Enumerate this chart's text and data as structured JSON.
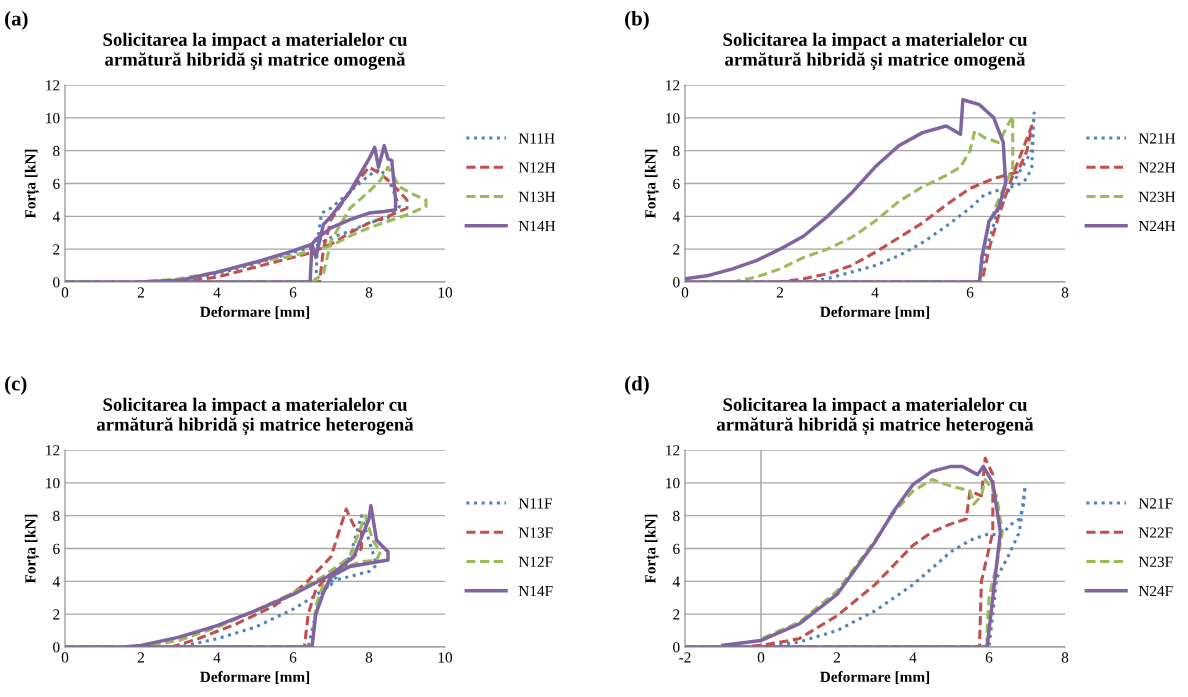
{
  "chart_data": [
    {
      "type": "line",
      "title": "Solicitarea la impact a materialelor cu\narmătură hibridă și matrice omogenă",
      "xlabel": "Deformare [mm]",
      "ylabel": "Forța [kN]",
      "annotations": [
        "(a)"
      ],
      "xlim": [
        0,
        10
      ],
      "xticks": [
        0,
        2,
        4,
        6,
        8,
        10
      ],
      "ylim": [
        0,
        12
      ],
      "yticks": [
        0,
        2,
        4,
        6,
        8,
        10,
        12
      ],
      "grid": "y",
      "legend": "right",
      "series": [
        {
          "name": "N11H",
          "color": "#4f81bd",
          "line_style": "dotted",
          "x": [
            0,
            3,
            6.6,
            6.65,
            6.75,
            7,
            7.5,
            8,
            8.3,
            8.6,
            8.8,
            8.5,
            8,
            7.5,
            7,
            6.6,
            6,
            5,
            4,
            3,
            2
          ],
          "values": [
            0,
            0,
            0,
            2.5,
            4.2,
            4.5,
            5.5,
            6.5,
            6.9,
            5.8,
            4.6,
            3.9,
            3.6,
            3.1,
            2.7,
            2.2,
            1.8,
            1.1,
            0.5,
            0.1,
            0
          ]
        },
        {
          "name": "N12H",
          "color": "#c0504d",
          "line_style": "dashed",
          "x": [
            0,
            6.7,
            6.8,
            7,
            7.5,
            8,
            8.3,
            8.6,
            9,
            9,
            8.5,
            8,
            7.5,
            7,
            6.5,
            6,
            5,
            4,
            3
          ],
          "values": [
            0,
            0,
            2,
            3.8,
            5.5,
            7,
            6.6,
            6,
            5,
            4.5,
            4,
            3.6,
            3,
            2.3,
            1.8,
            1.5,
            0.9,
            0.3,
            0
          ]
        },
        {
          "name": "N13H",
          "color": "#9bbb59",
          "line_style": "dashed",
          "x": [
            0,
            6.5,
            6.8,
            7,
            7.5,
            8,
            8.3,
            8.5,
            8.8,
            9.2,
            9.5,
            9.5,
            9,
            8.5,
            8,
            7.5,
            7,
            6.5,
            6,
            5,
            4,
            3,
            2
          ],
          "values": [
            0,
            0,
            0.5,
            2.5,
            4.5,
            5.5,
            6.2,
            7,
            5.8,
            5.3,
            5,
            4.6,
            4.1,
            3.7,
            3.3,
            2.8,
            2.2,
            1.9,
            1.6,
            1.2,
            0.6,
            0.2,
            0
          ]
        },
        {
          "name": "N14H",
          "color": "#8064a2",
          "line_style": "solid",
          "x": [
            0,
            6.45,
            6.5,
            6.6,
            6.8,
            7,
            7.5,
            8,
            8.15,
            8.25,
            8.4,
            8.5,
            8.6,
            8.7,
            8.7,
            8.4,
            8,
            7.5,
            7,
            6.6,
            6.5,
            6,
            5,
            4,
            3,
            2
          ],
          "values": [
            0,
            0,
            2.3,
            1.5,
            3.5,
            4,
            5.5,
            7.5,
            8.2,
            7,
            8.3,
            7.5,
            7.4,
            5,
            4.4,
            4.3,
            4.2,
            3.8,
            3.3,
            2.6,
            2.3,
            1.9,
            1.2,
            0.6,
            0.1,
            0
          ]
        }
      ]
    },
    {
      "type": "line",
      "title": "Solicitarea la impact a materialelor cu\narmătură hibridă și matrice omogenă",
      "xlabel": "Deformare [mm]",
      "ylabel": "Forța [kN]",
      "annotations": [
        "(b)"
      ],
      "xlim": [
        0,
        8
      ],
      "xticks": [
        0,
        2,
        4,
        6,
        8
      ],
      "ylim": [
        0,
        12
      ],
      "yticks": [
        0,
        2,
        4,
        6,
        8,
        10,
        12
      ],
      "grid": "y",
      "legend": "right",
      "series": [
        {
          "name": "N21H",
          "color": "#4f81bd",
          "line_style": "dotted",
          "x": [
            0,
            6.2,
            6.3,
            6.6,
            7,
            7.3,
            7.35,
            7.3,
            7.2,
            7,
            6.6,
            6.3,
            6,
            5.5,
            5,
            4.5,
            4,
            3.5,
            3,
            2.5
          ],
          "values": [
            0,
            0,
            1.5,
            4.5,
            6.5,
            8,
            10.3,
            7,
            6.3,
            5.9,
            5.6,
            5.3,
            4.5,
            3.4,
            2.4,
            1.6,
            1,
            0.6,
            0.2,
            0
          ]
        },
        {
          "name": "N22H",
          "color": "#c0504d",
          "line_style": "dashed",
          "x": [
            0,
            6.25,
            6.4,
            6.6,
            6.9,
            7.1,
            7.3,
            7.2,
            7,
            6.5,
            6,
            5.5,
            5,
            4.5,
            4,
            3.5,
            3,
            2.5,
            2
          ],
          "values": [
            0,
            0,
            2,
            4,
            6.5,
            8,
            9.5,
            8,
            6.7,
            6.3,
            5.7,
            4.7,
            3.6,
            2.7,
            1.8,
            1,
            0.5,
            0.2,
            0
          ]
        },
        {
          "name": "N23H",
          "color": "#9bbb59",
          "line_style": "dashed",
          "x": [
            0,
            6.2,
            6.25,
            6.4,
            6.6,
            6.9,
            6.9,
            6.6,
            6.3,
            6.1,
            6,
            5.8,
            5.5,
            5,
            4.5,
            4,
            3.5,
            3,
            2.5,
            2,
            1.5,
            1
          ],
          "values": [
            0,
            0,
            1.5,
            3.5,
            5,
            7,
            10.1,
            8.5,
            8.8,
            9.2,
            8,
            7,
            6.5,
            5.8,
            4.9,
            3.7,
            2.7,
            2,
            1.5,
            0.8,
            0.3,
            0
          ]
        },
        {
          "name": "N24H",
          "color": "#8064a2",
          "line_style": "solid",
          "x": [
            0,
            6.2,
            6.25,
            6.4,
            6.6,
            6.75,
            6.7,
            6.5,
            6.2,
            5.85,
            5.8,
            5.5,
            5,
            4.5,
            4,
            3.5,
            3,
            2.5,
            2,
            1.5,
            1,
            0.5,
            0
          ],
          "values": [
            0,
            0,
            1.5,
            3.7,
            4.5,
            6,
            8.5,
            10,
            10.8,
            11.1,
            9,
            9.5,
            9.1,
            8.3,
            7,
            5.4,
            4,
            2.8,
            2,
            1.3,
            0.8,
            0.4,
            0.2
          ]
        }
      ]
    },
    {
      "type": "line",
      "title": "Solicitarea la impact a materialelor cu\narmătură hibridă și matrice heterogenă",
      "xlabel": "Deformare [mm]",
      "ylabel": "Forța [kN]",
      "annotations": [
        "(c)"
      ],
      "xlim": [
        0,
        10
      ],
      "xticks": [
        0,
        2,
        4,
        6,
        8,
        10
      ],
      "ylim": [
        0,
        12
      ],
      "yticks": [
        0,
        2,
        4,
        6,
        8,
        10,
        12
      ],
      "grid": "y",
      "legend": "right",
      "series": [
        {
          "name": "N11F",
          "color": "#4f81bd",
          "line_style": "dotted",
          "x": [
            0,
            6.4,
            6.5,
            6.7,
            7,
            7.5,
            8,
            8.2,
            8,
            7.8,
            7.5,
            7,
            6.5,
            6,
            5,
            4,
            3
          ],
          "values": [
            0,
            0,
            1,
            3,
            4,
            4.3,
            4.6,
            5,
            6.5,
            8,
            5.5,
            3.8,
            3,
            2.3,
            1.2,
            0.5,
            0
          ]
        },
        {
          "name": "N13F",
          "color": "#c0504d",
          "line_style": "dashed",
          "x": [
            0,
            6.3,
            6.4,
            6.6,
            7,
            7.4,
            7.8,
            7.8,
            7.6,
            7.4,
            7,
            6.3,
            5.5,
            4.5,
            3.5,
            2.8
          ],
          "values": [
            0,
            0,
            2,
            3.5,
            4.5,
            5,
            6,
            7,
            7.4,
            8.4,
            5.5,
            3.8,
            2.5,
            1.4,
            0.5,
            0
          ]
        },
        {
          "name": "N12F",
          "color": "#9bbb59",
          "line_style": "dashed",
          "x": [
            0,
            6.5,
            6.6,
            6.8,
            7.3,
            7.8,
            8.2,
            8.3,
            8.1,
            7.9,
            7.5,
            6.8,
            6,
            5,
            4,
            3,
            2
          ],
          "values": [
            0,
            0,
            2.5,
            3.8,
            4.8,
            5.2,
            5.3,
            5.8,
            6.5,
            8,
            5.5,
            4.3,
            3.3,
            2.2,
            1.2,
            0.4,
            0
          ]
        },
        {
          "name": "N14F",
          "color": "#8064a2",
          "line_style": "solid",
          "x": [
            0,
            6.5,
            6.6,
            6.8,
            7,
            7.5,
            8,
            8.5,
            8.5,
            8.2,
            8.05,
            8,
            7.6,
            7,
            6,
            5,
            4,
            3,
            2,
            1.5
          ],
          "values": [
            0,
            0,
            2,
            3.3,
            4.3,
            4.9,
            5.1,
            5.3,
            5.8,
            6.5,
            8.6,
            7.8,
            5.5,
            4.4,
            3.2,
            2.2,
            1.3,
            0.6,
            0.1,
            0
          ]
        }
      ]
    },
    {
      "type": "line",
      "title": "Solicitarea la impact a materialelor cu\narmătură hibridă și matrice heterogenă",
      "xlabel": "Deformare [mm]",
      "ylabel": "Forța [kN]",
      "annotations": [
        "(d)"
      ],
      "xlim": [
        -2,
        8
      ],
      "xticks": [
        -2,
        0,
        2,
        4,
        6,
        8
      ],
      "ylim": [
        0,
        12
      ],
      "yticks": [
        0,
        2,
        4,
        6,
        8,
        10,
        12
      ],
      "grid": "y",
      "legend": "right",
      "ref_lines": [
        {
          "axis": "x",
          "value": 0,
          "color": "#a0a0a0"
        }
      ],
      "series": [
        {
          "name": "N21F",
          "color": "#4f81bd",
          "line_style": "dotted",
          "x": [
            -2,
            6,
            6.1,
            6.2,
            6.5,
            6.8,
            6.95,
            6.9,
            6.8,
            6.6,
            6.3,
            6,
            5.5,
            5,
            4,
            3,
            2,
            1,
            0
          ],
          "values": [
            0,
            0,
            2,
            4.2,
            5.5,
            7,
            9.8,
            8.5,
            7.8,
            7.5,
            6.8,
            6.9,
            6.5,
            5.8,
            3.8,
            2.2,
            1,
            0.3,
            0
          ]
        },
        {
          "name": "N22F",
          "color": "#c0504d",
          "line_style": "dashed",
          "x": [
            -2,
            5.75,
            5.8,
            5.9,
            6.1,
            6.1,
            5.9,
            5.8,
            5.5,
            5.4,
            5,
            4.5,
            4,
            3,
            2,
            1,
            0,
            -0.5
          ],
          "values": [
            0,
            0,
            4,
            5,
            7,
            10.5,
            11.5,
            9.2,
            9.5,
            7.8,
            7.5,
            7,
            6.2,
            3.8,
            1.9,
            0.5,
            0.1,
            0
          ]
        },
        {
          "name": "N23F",
          "color": "#9bbb59",
          "line_style": "dashed",
          "x": [
            -2,
            5.95,
            5.95,
            6,
            6.2,
            6.35,
            6.2,
            5.9,
            5.8,
            5.6,
            5.5,
            5,
            4.5,
            4,
            3.5,
            3,
            2,
            1,
            0
          ],
          "values": [
            0,
            0,
            1,
            3,
            5,
            7,
            9.2,
            10.2,
            9.2,
            8.7,
            9.5,
            9.8,
            10.2,
            9.5,
            8.2,
            6.5,
            3.4,
            1.5,
            0.5
          ]
        },
        {
          "name": "N24F",
          "color": "#8064a2",
          "line_style": "solid",
          "x": [
            -2,
            5.95,
            6,
            6.1,
            6.2,
            6.3,
            6.1,
            5.85,
            5.7,
            5.3,
            5,
            4.5,
            4,
            3.5,
            3,
            2,
            1,
            0,
            -1
          ],
          "values": [
            0,
            0,
            1,
            3,
            5,
            7,
            10,
            11,
            10.5,
            11,
            11,
            10.7,
            9.9,
            8.3,
            6.4,
            3.2,
            1.4,
            0.4,
            0.1
          ]
        }
      ]
    }
  ]
}
